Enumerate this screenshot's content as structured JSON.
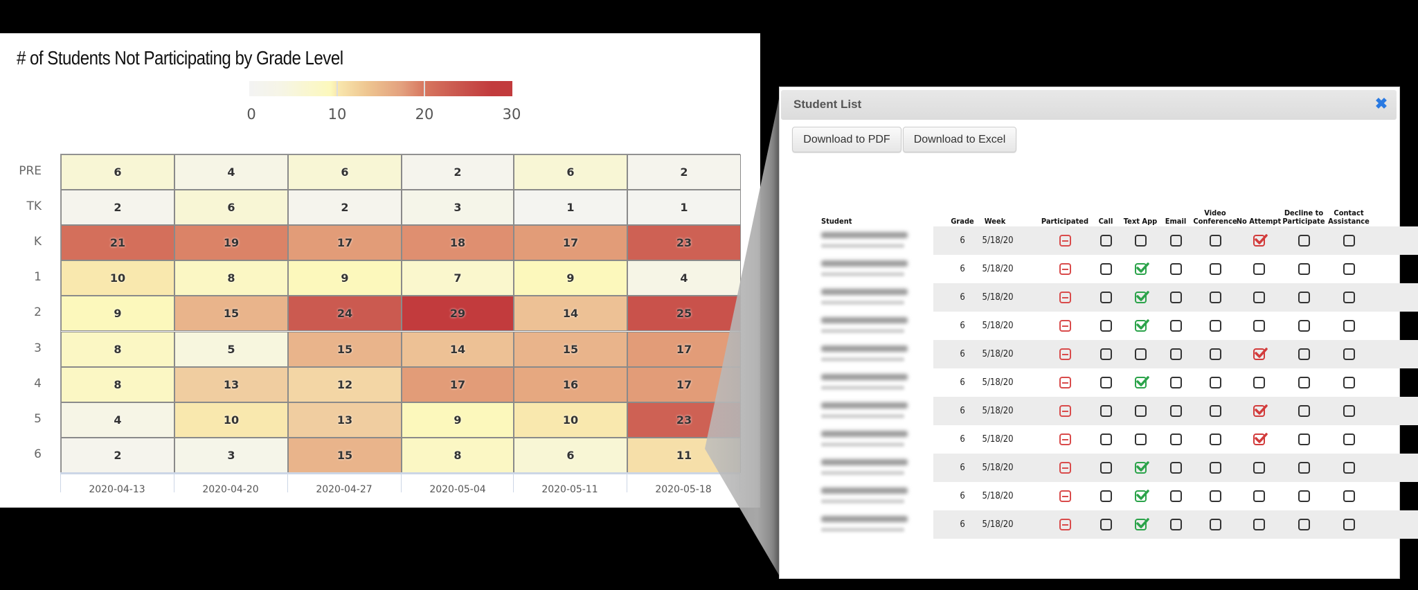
{
  "chart": {
    "title": "# of Students Not Participating by Grade Level",
    "colorbar": {
      "labels": [
        "0",
        "10",
        "20",
        "30"
      ]
    }
  },
  "chart_data": {
    "type": "heatmap",
    "title": "# of Students Not Participating by Grade Level",
    "xlabel": "",
    "ylabel": "",
    "x": [
      "2020-04-13",
      "2020-04-20",
      "2020-04-27",
      "2020-05-04",
      "2020-05-11",
      "2020-05-18"
    ],
    "y": [
      "PRE",
      "TK",
      "K",
      "1",
      "2",
      "3",
      "4",
      "5",
      "6"
    ],
    "values": [
      [
        6,
        4,
        6,
        2,
        6,
        2
      ],
      [
        2,
        6,
        2,
        3,
        1,
        1
      ],
      [
        21,
        19,
        17,
        18,
        17,
        23
      ],
      [
        10,
        8,
        9,
        7,
        9,
        4
      ],
      [
        9,
        15,
        24,
        29,
        14,
        25
      ],
      [
        8,
        5,
        15,
        14,
        15,
        17
      ],
      [
        8,
        13,
        12,
        17,
        16,
        17
      ],
      [
        4,
        10,
        13,
        9,
        10,
        23
      ],
      [
        2,
        3,
        15,
        8,
        6,
        11
      ]
    ],
    "colorscale": {
      "min": 0,
      "max": 30,
      "ticks": [
        0,
        10,
        20,
        30
      ],
      "colors": [
        "#f3f3f3",
        "#fcf8bc",
        "#d7765f",
        "#c23b3d"
      ]
    },
    "legend_position": "top",
    "grid": true
  },
  "modal": {
    "title": "Student List",
    "close_icon": "close-icon",
    "buttons": {
      "pdf": "Download to PDF",
      "excel": "Download to Excel"
    },
    "columns": [
      "Student",
      "Grade",
      "Week",
      "Participated",
      "Call",
      "Text App",
      "Email",
      "Video Conference",
      "No Attempt",
      "Decline to Participate",
      "Contact Assistance"
    ],
    "column_lines": [
      [
        "Student"
      ],
      [
        "Grade"
      ],
      [
        "Week"
      ],
      [
        "Participated"
      ],
      [
        "Call"
      ],
      [
        "Text App"
      ],
      [
        "Email"
      ],
      [
        "Video",
        "Conference"
      ],
      [
        "No Attempt"
      ],
      [
        "Decline to",
        "Participate"
      ],
      [
        "Contact",
        "Assistance"
      ]
    ],
    "rows": [
      {
        "grade": "6",
        "week": "5/18/20",
        "participated": false,
        "checked": "No Attempt"
      },
      {
        "grade": "6",
        "week": "5/18/20",
        "participated": false,
        "checked": "Text App"
      },
      {
        "grade": "6",
        "week": "5/18/20",
        "participated": false,
        "checked": "Text App"
      },
      {
        "grade": "6",
        "week": "5/18/20",
        "participated": false,
        "checked": "Text App"
      },
      {
        "grade": "6",
        "week": "5/18/20",
        "participated": false,
        "checked": "No Attempt"
      },
      {
        "grade": "6",
        "week": "5/18/20",
        "participated": false,
        "checked": "Text App"
      },
      {
        "grade": "6",
        "week": "5/18/20",
        "participated": false,
        "checked": "No Attempt"
      },
      {
        "grade": "6",
        "week": "5/18/20",
        "participated": false,
        "checked": "No Attempt"
      },
      {
        "grade": "6",
        "week": "5/18/20",
        "participated": false,
        "checked": "Text App"
      },
      {
        "grade": "6",
        "week": "5/18/20",
        "participated": false,
        "checked": "Text App"
      },
      {
        "grade": "6",
        "week": "5/18/20",
        "participated": false,
        "checked": "Text App"
      }
    ],
    "colors": {
      "check_green": "#2ba34a",
      "check_red": "#d23b3b",
      "close_blue": "#2a7ae2",
      "stripe": "#ececec"
    }
  }
}
